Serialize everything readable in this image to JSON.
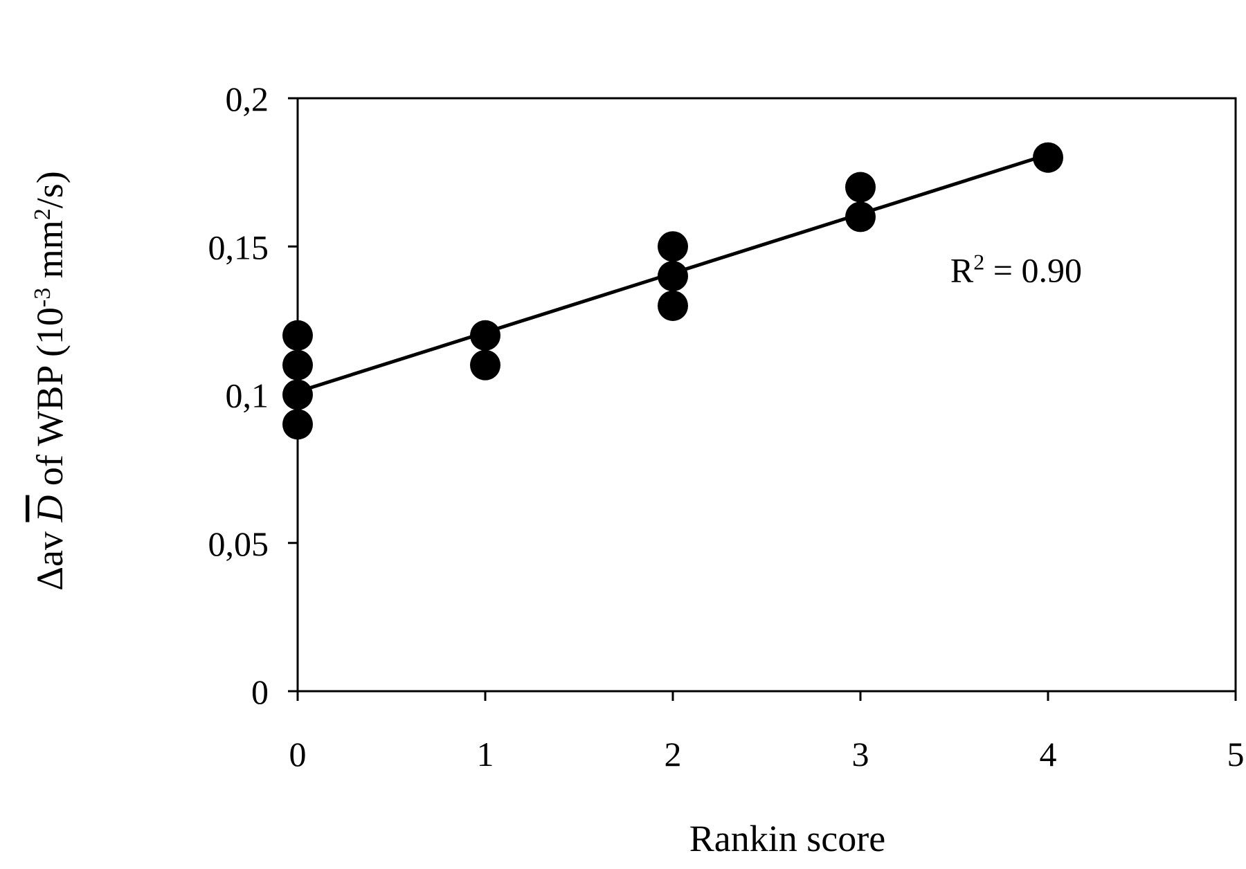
{
  "chart_data": {
    "type": "scatter",
    "xlabel": "Rankin score",
    "ylabel": {
      "prefix": "Δav ",
      "symbol": "D",
      "mid": " of WBP (10",
      "exp1": "-3",
      "mid2": " mm",
      "exp2": "2",
      "suffix": "/s)"
    },
    "xlim": [
      0,
      5
    ],
    "ylim": [
      0,
      0.2
    ],
    "x_ticks": [
      {
        "value": 0,
        "label": "0"
      },
      {
        "value": 1,
        "label": "1"
      },
      {
        "value": 2,
        "label": "2"
      },
      {
        "value": 3,
        "label": "3"
      },
      {
        "value": 4,
        "label": "4"
      },
      {
        "value": 5,
        "label": "5"
      }
    ],
    "y_ticks": [
      {
        "value": 0,
        "label": "0"
      },
      {
        "value": 0.05,
        "label": "0,05"
      },
      {
        "value": 0.1,
        "label": "0,1"
      },
      {
        "value": 0.15,
        "label": "0,15"
      },
      {
        "value": 0.2,
        "label": "0,2"
      }
    ],
    "grid": false,
    "legend": "none",
    "points": [
      {
        "x": 0,
        "y": 0.12
      },
      {
        "x": 0,
        "y": 0.11
      },
      {
        "x": 0,
        "y": 0.1
      },
      {
        "x": 0,
        "y": 0.09
      },
      {
        "x": 1,
        "y": 0.12
      },
      {
        "x": 1,
        "y": 0.11
      },
      {
        "x": 2,
        "y": 0.15
      },
      {
        "x": 2,
        "y": 0.14
      },
      {
        "x": 2,
        "y": 0.13
      },
      {
        "x": 3,
        "y": 0.17
      },
      {
        "x": 3,
        "y": 0.16
      },
      {
        "x": 4,
        "y": 0.18
      }
    ],
    "trendline": {
      "x_start": 0,
      "x_end": 4,
      "y_start": 0.101,
      "y_end": 0.181
    },
    "annotation": {
      "base": "R",
      "exp": "2",
      "rest": " = 0.90",
      "anchor_x": 3.83,
      "anchor_y": 0.138
    },
    "colors": {
      "marker": "#000000",
      "line": "#000000"
    }
  }
}
